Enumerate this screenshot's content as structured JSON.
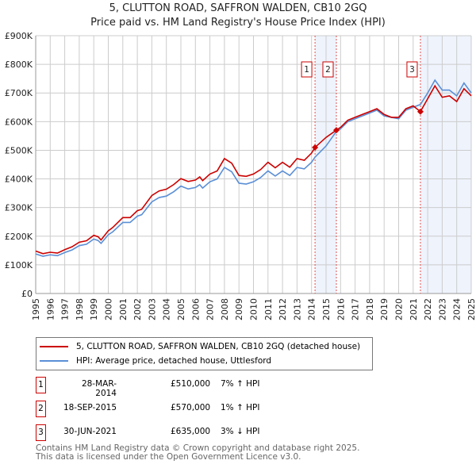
{
  "chart_data": {
    "type": "line",
    "title": "5, CLUTTON ROAD, SAFFRON WALDEN, CB10 2GQ",
    "subtitle": "Price paid vs. HM Land Registry's House Price Index (HPI)",
    "xlim": [
      1995,
      2025
    ],
    "ylim": [
      0,
      900000
    ],
    "y_ticks": [
      {
        "v": 0,
        "label": "£0"
      },
      {
        "v": 100000,
        "label": "£100K"
      },
      {
        "v": 200000,
        "label": "£200K"
      },
      {
        "v": 300000,
        "label": "£300K"
      },
      {
        "v": 400000,
        "label": "£400K"
      },
      {
        "v": 500000,
        "label": "£500K"
      },
      {
        "v": 600000,
        "label": "£600K"
      },
      {
        "v": 700000,
        "label": "£700K"
      },
      {
        "v": 800000,
        "label": "£800K"
      },
      {
        "v": 900000,
        "label": "£900K"
      }
    ],
    "x_ticks": [
      "1995",
      "1996",
      "1997",
      "1998",
      "1999",
      "2000",
      "2001",
      "2002",
      "2003",
      "2004",
      "2005",
      "2006",
      "2007",
      "2008",
      "2009",
      "2010",
      "2011",
      "2012",
      "2013",
      "2014",
      "2015",
      "2016",
      "2017",
      "2018",
      "2019",
      "2020",
      "2021",
      "2022",
      "2023",
      "2024",
      "2025"
    ],
    "grid": true,
    "x": [
      1995,
      1995.5,
      1996,
      1996.5,
      1997,
      1997.5,
      1998,
      1998.5,
      1999,
      1999.3,
      1999.5,
      2000,
      2000.3,
      2001,
      2001.5,
      2002,
      2002.3,
      2003,
      2003.5,
      2004,
      2004.5,
      2005,
      2005.5,
      2006,
      2006.3,
      2006.5,
      2007,
      2007.5,
      2008,
      2008.5,
      2009,
      2009.5,
      2010,
      2010.5,
      2011,
      2011.5,
      2012,
      2012.5,
      2013,
      2013.5,
      2014,
      2014.24,
      2015,
      2015.7,
      2016,
      2016.5,
      2017,
      2017.5,
      2018,
      2018.5,
      2019,
      2019.5,
      2020,
      2020.5,
      2021,
      2021.5,
      2022,
      2022.5,
      2023,
      2023.5,
      2024,
      2024.5,
      2025
    ],
    "series": [
      {
        "name": "5, CLUTTON ROAD, SAFFRON WALDEN, CB10 2GQ (detached house)",
        "color": "#cc0000",
        "values": [
          148000,
          139000,
          144000,
          141000,
          153000,
          163000,
          179000,
          184000,
          203000,
          198000,
          187000,
          219000,
          230000,
          265000,
          265000,
          289000,
          294000,
          342000,
          358000,
          364000,
          380000,
          401000,
          391000,
          396000,
          407000,
          394000,
          417000,
          428000,
          471000,
          455000,
          412000,
          409000,
          417000,
          433000,
          458000,
          439000,
          458000,
          441000,
          471000,
          465000,
          490000,
          510000,
          545000,
          570000,
          580000,
          605000,
          615000,
          625000,
          635000,
          645000,
          625000,
          615000,
          615000,
          645000,
          655000,
          635000,
          680000,
          725000,
          685000,
          690000,
          670000,
          715000,
          690000
        ]
      },
      {
        "name": "HPI: Average price, detached house, Uttlesford",
        "color": "#5b8fd6",
        "values": [
          138000,
          130000,
          135000,
          132000,
          143000,
          152000,
          167000,
          172000,
          190000,
          185000,
          175000,
          205000,
          215000,
          248000,
          248000,
          270000,
          275000,
          320000,
          335000,
          340000,
          355000,
          375000,
          365000,
          370000,
          380000,
          368000,
          390000,
          400000,
          440000,
          425000,
          385000,
          382000,
          390000,
          405000,
          428000,
          410000,
          428000,
          412000,
          440000,
          435000,
          458000,
          476000,
          515000,
          565000,
          575000,
          600000,
          610000,
          620000,
          630000,
          640000,
          620000,
          615000,
          610000,
          640000,
          650000,
          660000,
          700000,
          745000,
          710000,
          710000,
          690000,
          735000,
          700000
        ]
      }
    ],
    "sales": [
      {
        "n": "1",
        "x": 2014.24,
        "date": "28-MAR-2014",
        "price": 510000,
        "price_label": "£510,000",
        "hpi": "7% ↑ HPI"
      },
      {
        "n": "2",
        "x": 2015.71,
        "date": "18-SEP-2015",
        "price": 570000,
        "price_label": "£570,000",
        "hpi": "1% ↑ HPI"
      },
      {
        "n": "3",
        "x": 2021.5,
        "date": "30-JUN-2021",
        "price": 635000,
        "price_label": "£635,000",
        "hpi": "3% ↓ HPI"
      }
    ],
    "shaded": [
      [
        2014.24,
        2015.71
      ],
      [
        2021.5,
        2025
      ]
    ],
    "legend": "below"
  },
  "footer": [
    "Contains HM Land Registry data © Crown copyright and database right 2025.",
    "This data is licensed under the Open Government Licence v3.0."
  ]
}
